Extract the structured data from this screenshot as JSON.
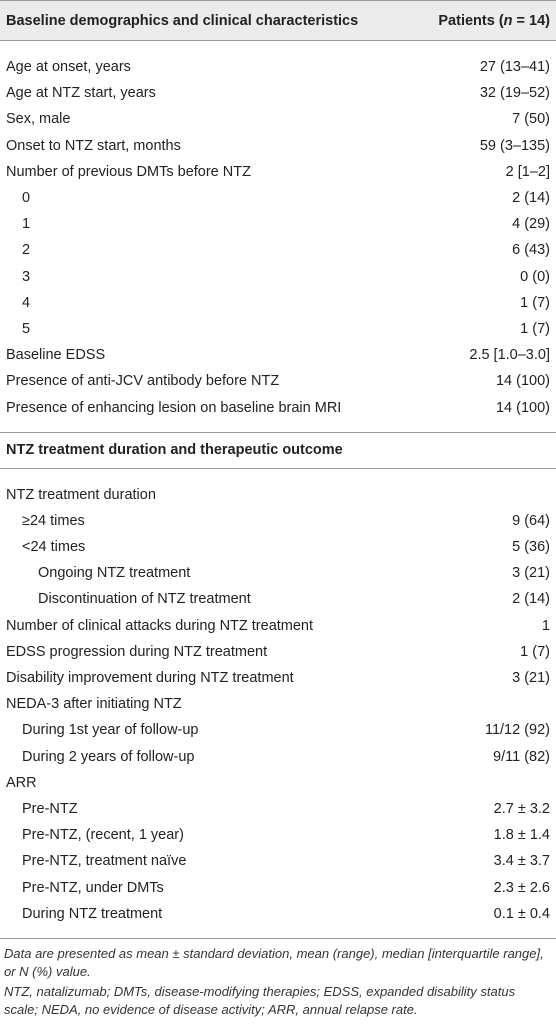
{
  "header": {
    "left": "Baseline demographics and clinical characteristics",
    "right": [
      "Patients (",
      "n",
      " = 14)"
    ]
  },
  "sections": [
    {
      "rows": [
        {
          "label": "Age at onset, years",
          "value": "27 (13–41)"
        },
        {
          "label": "Age at NTZ start, years",
          "value": "32 (19–52)"
        },
        {
          "label": "Sex, male",
          "value": "7 (50)"
        },
        {
          "label": "Onset to NTZ start, months",
          "value": "59 (3–135)"
        },
        {
          "label": "Number of previous DMTs before NTZ",
          "value": "2 [1–2]",
          "sub": [
            {
              "label": "0",
              "value": "2 (14)"
            },
            {
              "label": "1",
              "value": "4 (29)"
            },
            {
              "label": "2",
              "value": "6 (43)"
            },
            {
              "label": "3",
              "value": "0 (0)"
            },
            {
              "label": "4",
              "value": "1 (7)"
            },
            {
              "label": "5",
              "value": "1 (7)"
            }
          ]
        },
        {
          "label": "Baseline EDSS",
          "value": "2.5 [1.0–3.0]"
        },
        {
          "label": "Presence of anti-JCV antibody before NTZ",
          "value": "14 (100)"
        },
        {
          "label": "Presence of enhancing lesion on baseline brain MRI",
          "value": "14 (100)"
        }
      ]
    },
    {
      "title": "NTZ treatment duration and therapeutic outcome",
      "rows": [
        {
          "label": "NTZ treatment duration",
          "sub": [
            {
              "label": "≥24 times",
              "value": "9 (64)"
            },
            {
              "label": "<24 times",
              "value": "5 (36)",
              "sub": [
                {
                  "label": "Ongoing NTZ treatment",
                  "value": "3 (21)"
                },
                {
                  "label": "Discontinuation of NTZ treatment",
                  "value": "2 (14)"
                }
              ]
            }
          ]
        },
        {
          "label": "Number of clinical attacks during NTZ treatment",
          "value": "1"
        },
        {
          "label": "EDSS progression during NTZ treatment",
          "value": "1 (7)"
        },
        {
          "label": "Disability improvement during NTZ treatment",
          "value": "3 (21)"
        },
        {
          "label": "NEDA-3 after initiating NTZ",
          "sub": [
            {
              "label": "During 1st year of follow-up",
              "value": "11/12 (92)"
            },
            {
              "label": "During 2 years of follow-up",
              "value": "9/11 (82)"
            }
          ]
        },
        {
          "label": "ARR",
          "sub": [
            {
              "label": "Pre-NTZ",
              "value": "2.7 ± 3.2"
            },
            {
              "label": "Pre-NTZ, (recent, 1 year)",
              "value": "1.8 ± 1.4"
            },
            {
              "label": "Pre-NTZ, treatment naïve",
              "value": "3.4 ± 3.7"
            },
            {
              "label": "Pre-NTZ, under DMTs",
              "value": "2.3 ± 2.6"
            },
            {
              "label": "During NTZ treatment",
              "value": "0.1 ± 0.4"
            }
          ]
        }
      ]
    }
  ],
  "footnotes": [
    "Data are presented as mean ± standard deviation, mean (range), median [interquartile range], or N (%) value.",
    "NTZ, natalizumab; DMTs, disease-modifying therapies; EDSS, expanded disability status scale; NEDA, no evidence of disease activity; ARR, annual relapse rate."
  ]
}
